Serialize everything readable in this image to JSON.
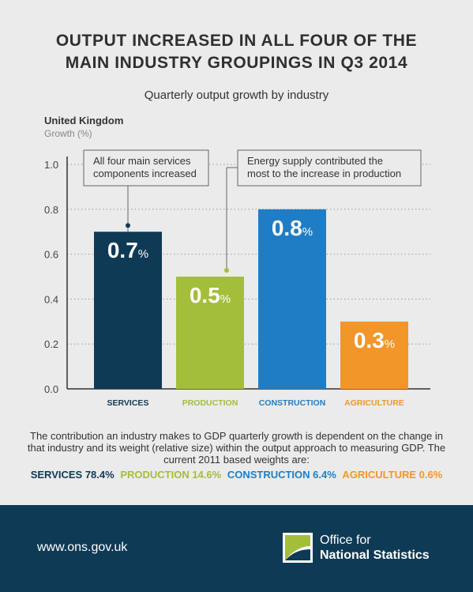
{
  "headline": {
    "line1": "OUTPUT INCREASED IN ALL FOUR OF THE",
    "line2": "MAIN INDUSTRY GROUPINGS IN Q3 2014"
  },
  "colors": {
    "services": "#0f3a55",
    "production": "#a3be3a",
    "construction": "#1f7dc6",
    "agriculture": "#f2962a",
    "footer": "#0f3a55"
  },
  "chart_data": {
    "type": "bar",
    "title": "Quarterly output growth by industry",
    "region": "United Kingdom",
    "ylabel": "Growth (%)",
    "ylim": [
      0,
      1.0
    ],
    "yticks": [
      "0.0",
      "0.2",
      "0.4",
      "0.6",
      "0.8",
      "1.0"
    ],
    "grid": true,
    "categories": [
      "SERVICES",
      "PRODUCTION",
      "CONSTRUCTION",
      "AGRICULTURE"
    ],
    "values": [
      0.7,
      0.5,
      0.8,
      0.3
    ],
    "value_labels": [
      "0.7",
      "0.5",
      "0.8",
      "0.3"
    ],
    "value_unit": "%",
    "annotations": [
      {
        "lines": [
          "All four main services",
          "components increased"
        ],
        "target": "SERVICES"
      },
      {
        "lines": [
          "Energy supply contributed the",
          "most to the increase in production"
        ],
        "target": "PRODUCTION"
      }
    ]
  },
  "note": {
    "text": "The contribution an industry makes to GDP quarterly growth is dependent on the change in that industry and its weight (relative size) within the output approach to measuring GDP. The current 2011 based weights are:",
    "weights": [
      {
        "label": "SERVICES 78.4%"
      },
      {
        "label": "PRODUCTION 14.6%"
      },
      {
        "label": "CONSTRUCTION 6.4%"
      },
      {
        "label": "AGRICULTURE 0.6%"
      }
    ]
  },
  "footer": {
    "url": "www.ons.gov.uk",
    "logo_line1": "Office for",
    "logo_line2": "National Statistics"
  }
}
